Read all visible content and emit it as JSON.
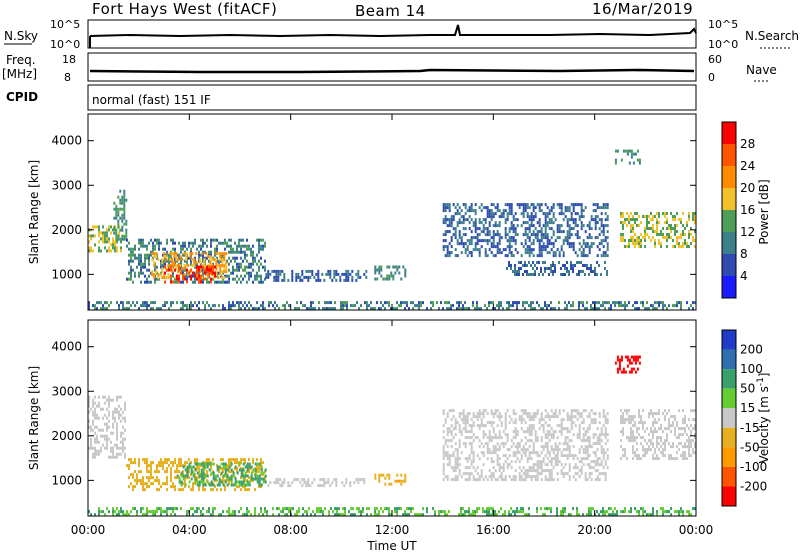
{
  "header": {
    "station": "Fort Hays West (fitACF)",
    "beam": "Beam 14",
    "date": "16/Mar/2019"
  },
  "strip": {
    "nsky_label": "N.Sky",
    "nsky_ticks": [
      "10^5",
      "10^0"
    ],
    "nsearch_label": "N.Search",
    "nsearch_ticks": [
      "10^5",
      "10^0"
    ],
    "freq_label": "Freq.",
    "freq_unit": "[MHz]",
    "freq_ticks": [
      "18",
      "8"
    ],
    "nave_label": "Nave",
    "nave_ticks": [
      "60",
      "0"
    ],
    "cpid_label": "CPID",
    "cpid_value": "normal (fast) 151 IF"
  },
  "colors": {
    "background": "#ffffff",
    "power_scale": [
      "#1b1bff",
      "#2f4bb0",
      "#3d7f8a",
      "#4e9e5a",
      "#f2c22a",
      "#ff8c00",
      "#ff5500",
      "#ff0000"
    ],
    "velocity_scale": [
      "#1e3cc8",
      "#2f6fb0",
      "#3aa06a",
      "#66cc33",
      "#c8c8c8",
      "#e6b020",
      "#ff9900",
      "#ff5500",
      "#ff0000"
    ]
  },
  "chart_data": [
    {
      "type": "heatmap",
      "name": "power",
      "x_unit": "UT",
      "xlabel": "Time UT",
      "xlim": [
        "00:00",
        "24:00"
      ],
      "xticks": [
        "00:00",
        "04:00",
        "08:00",
        "12:00",
        "16:00",
        "20:00",
        "00:00"
      ],
      "ylabel": "Slant Range [km]",
      "ylim": [
        200,
        4600
      ],
      "yticks": [
        1000,
        2000,
        3000,
        4000
      ],
      "colorbar": {
        "label": "Power [dB]",
        "range": [
          0,
          32
        ],
        "ticks": [
          "4",
          "8",
          "12",
          "16",
          "20",
          "24",
          "28"
        ]
      },
      "regions": [
        {
          "t0": 0.0,
          "t1": 1.3,
          "r0": 1500,
          "r1": 2100,
          "value": 16
        },
        {
          "t0": 1.0,
          "t1": 1.5,
          "r0": 1800,
          "r1": 2900,
          "value": 12
        },
        {
          "t0": 1.5,
          "t1": 7.0,
          "r0": 800,
          "r1": 1800,
          "value": 10
        },
        {
          "t0": 2.5,
          "t1": 5.5,
          "r0": 900,
          "r1": 1500,
          "value": 20
        },
        {
          "t0": 3.0,
          "t1": 5.0,
          "r0": 850,
          "r1": 1200,
          "value": 28
        },
        {
          "t0": 7.0,
          "t1": 11.0,
          "r0": 850,
          "r1": 1100,
          "value": 8
        },
        {
          "t0": 11.3,
          "t1": 12.5,
          "r0": 900,
          "r1": 1200,
          "value": 12
        },
        {
          "t0": 14.0,
          "t1": 20.5,
          "r0": 1400,
          "r1": 2600,
          "value": 8
        },
        {
          "t0": 16.5,
          "t1": 20.5,
          "r0": 1000,
          "r1": 1300,
          "value": 8
        },
        {
          "t0": 21.0,
          "t1": 24.0,
          "r0": 1600,
          "r1": 2400,
          "value": 16
        },
        {
          "t0": 20.8,
          "t1": 21.8,
          "r0": 3500,
          "r1": 3800,
          "value": 12
        },
        {
          "t0": 0.0,
          "t1": 24.0,
          "r0": 200,
          "r1": 400,
          "value": 10
        }
      ]
    },
    {
      "type": "heatmap",
      "name": "velocity",
      "xlabel": "Time UT",
      "xlim": [
        "00:00",
        "24:00"
      ],
      "xticks": [
        "00:00",
        "04:00",
        "08:00",
        "12:00",
        "16:00",
        "20:00",
        "00:00"
      ],
      "ylabel": "Slant Range [km]",
      "ylim": [
        200,
        4600
      ],
      "yticks": [
        1000,
        2000,
        3000,
        4000
      ],
      "colorbar": {
        "label": "Velocity [m s-1]",
        "label_parts": [
          "Velocity [m s",
          "-1",
          "]"
        ],
        "ticks": [
          "200",
          "100",
          "50",
          "15",
          "-15",
          "-50",
          "-100",
          "-200"
        ]
      },
      "regions": [
        {
          "t0": 0.0,
          "t1": 1.5,
          "r0": 1500,
          "r1": 2900,
          "value": 0
        },
        {
          "t0": 1.5,
          "t1": 7.0,
          "r0": 800,
          "r1": 1500,
          "value": -30
        },
        {
          "t0": 3.5,
          "t1": 7.0,
          "r0": 900,
          "r1": 1400,
          "value": 40
        },
        {
          "t0": 7.0,
          "t1": 11.0,
          "r0": 850,
          "r1": 1050,
          "value": 0
        },
        {
          "t0": 11.3,
          "t1": 12.5,
          "r0": 900,
          "r1": 1150,
          "value": -40
        },
        {
          "t0": 14.0,
          "t1": 20.5,
          "r0": 1000,
          "r1": 2600,
          "value": 0
        },
        {
          "t0": 21.0,
          "t1": 24.0,
          "r0": 1500,
          "r1": 2600,
          "value": 0
        },
        {
          "t0": 20.8,
          "t1": 21.8,
          "r0": 3400,
          "r1": 3800,
          "value": -220
        },
        {
          "t0": 0.0,
          "t1": 24.0,
          "r0": 200,
          "r1": 400,
          "value": 30
        }
      ]
    }
  ]
}
